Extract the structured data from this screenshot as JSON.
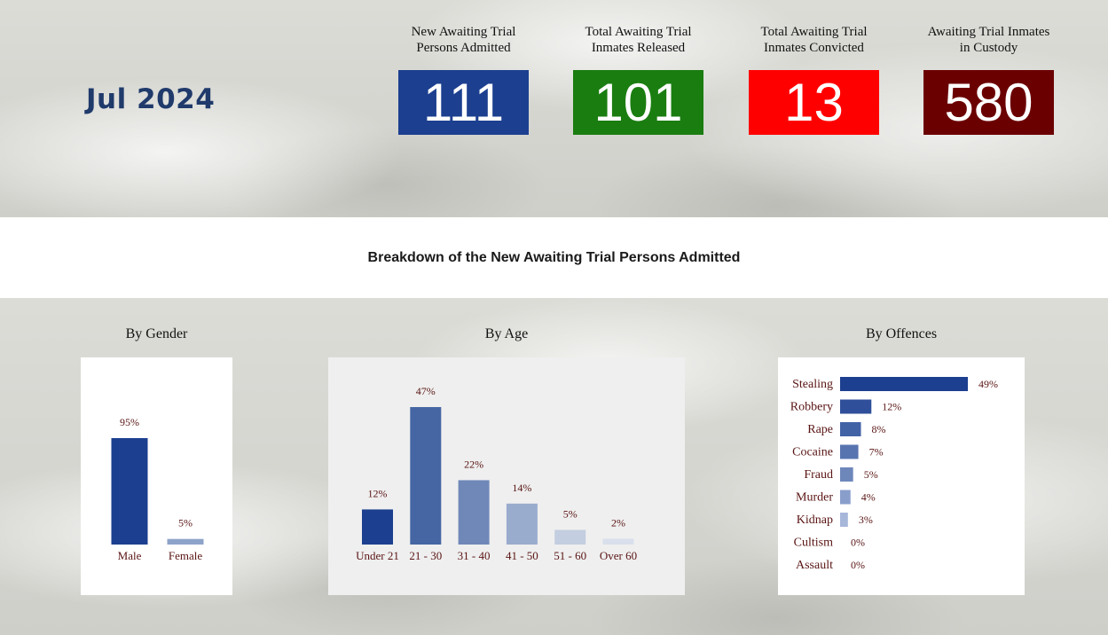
{
  "period": "Jul 2024",
  "kpis": [
    {
      "label": "New Awaiting Trial\nPersons Admitted",
      "value": "111",
      "color": "#1c3f8f"
    },
    {
      "label": "Total Awaiting Trial\nInmates Released",
      "value": "101",
      "color": "#1a7d10"
    },
    {
      "label": "Total Awaiting Trial\nInmates Convicted",
      "value": "13",
      "color": "#ff0000"
    },
    {
      "label": "Awaiting Trial Inmates\nin Custody",
      "value": "580",
      "color": "#6b0000"
    }
  ],
  "section_title": "Breakdown of the New Awaiting Trial Persons Admitted",
  "chart_data": [
    {
      "type": "bar",
      "title": "By Gender",
      "categories": [
        "Male",
        "Female"
      ],
      "values": [
        95,
        5
      ],
      "labels": [
        "95%",
        "5%"
      ],
      "colors": [
        "#1c3f8f",
        "#8ea3c9"
      ],
      "unit": "%"
    },
    {
      "type": "bar",
      "title": "By Age",
      "categories": [
        "Under 21",
        "21 - 30",
        "31 - 40",
        "41 - 50",
        "51 - 60",
        "Over 60"
      ],
      "values": [
        12,
        47,
        22,
        14,
        5,
        2
      ],
      "labels": [
        "12%",
        "47%",
        "22%",
        "14%",
        "5%",
        "2%"
      ],
      "colors": [
        "#1c3f8f",
        "#4566a3",
        "#6f88b8",
        "#9aacce",
        "#c3ceе0",
        "#d9e0ec"
      ],
      "unit": "%"
    },
    {
      "type": "bar",
      "orientation": "horizontal",
      "title": "By Offences",
      "categories": [
        "Stealing",
        "Robbery",
        "Rape",
        "Cocaine",
        "Fraud",
        "Murder",
        "Kidnap",
        "Cultism",
        "Assault"
      ],
      "values": [
        49,
        12,
        8,
        7,
        5,
        4,
        3,
        0,
        0
      ],
      "labels": [
        "49%",
        "12%",
        "8%",
        "7%",
        "5%",
        "4%",
        "3%",
        "0%",
        "0%"
      ],
      "colors": [
        "#1c3f8f",
        "#2f4f9a",
        "#4262a6",
        "#5874b0",
        "#6e87bb",
        "#8a9ecb",
        "#a7b7da",
        "#c0cce4",
        "#c0cce4"
      ],
      "unit": "%"
    }
  ]
}
